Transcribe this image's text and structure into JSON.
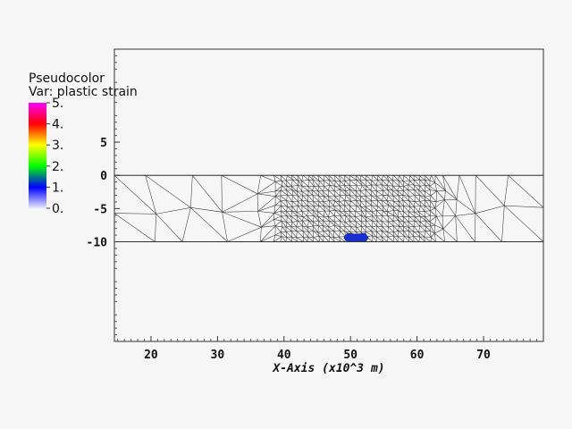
{
  "legend": {
    "title": "Pseudocolor",
    "var_label": "Var: plastic strain",
    "ticks": [
      "5.",
      "4.",
      "3.",
      "2.",
      "1.",
      "0."
    ],
    "colors": [
      "#ff00ff",
      "#ff0000",
      "#ffff00",
      "#00ff00",
      "#0000ff",
      "#e8e8ff"
    ]
  },
  "chart_data": {
    "type": "mesh",
    "x_ticks": [
      "20",
      "30",
      "40",
      "50",
      "60",
      "70"
    ],
    "y_ticks": [
      "5",
      "0",
      "-5",
      "-10"
    ],
    "xlabel": "X-Axis (x10^3 m)",
    "xlim": [
      14.5,
      79
    ],
    "ylim": [
      -25,
      19
    ],
    "domain": {
      "x": [
        14.5,
        79
      ],
      "y": [
        -10,
        0
      ]
    },
    "refined_region": {
      "x": [
        39,
        62
      ],
      "y": [
        -10,
        0
      ]
    },
    "plastic_strain_patch": {
      "x": [
        49.5,
        52.2
      ],
      "y": [
        -10,
        -8.7
      ],
      "color": "#1a2fd0"
    }
  }
}
